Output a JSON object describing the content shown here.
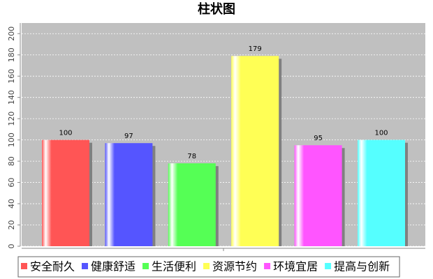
{
  "chart_data": {
    "type": "bar",
    "title": "柱状图",
    "categories": [
      null
    ],
    "series": [
      {
        "name": "安全耐久",
        "color": "#ff5555",
        "values": [
          100
        ]
      },
      {
        "name": "健康舒适",
        "color": "#5555ff",
        "values": [
          97
        ]
      },
      {
        "name": "生活便利",
        "color": "#55ff55",
        "values": [
          78
        ]
      },
      {
        "name": "资源节约",
        "color": "#ffff55",
        "values": [
          179
        ]
      },
      {
        "name": "环境宜居",
        "color": "#ff55ff",
        "values": [
          95
        ]
      },
      {
        "name": "提高与创新",
        "color": "#55ffff",
        "values": [
          100
        ]
      }
    ],
    "ylim": [
      0,
      210
    ],
    "yticks": [
      0,
      20,
      40,
      60,
      80,
      100,
      120,
      140,
      160,
      180,
      200
    ],
    "grid": true,
    "legend": "bottom"
  }
}
